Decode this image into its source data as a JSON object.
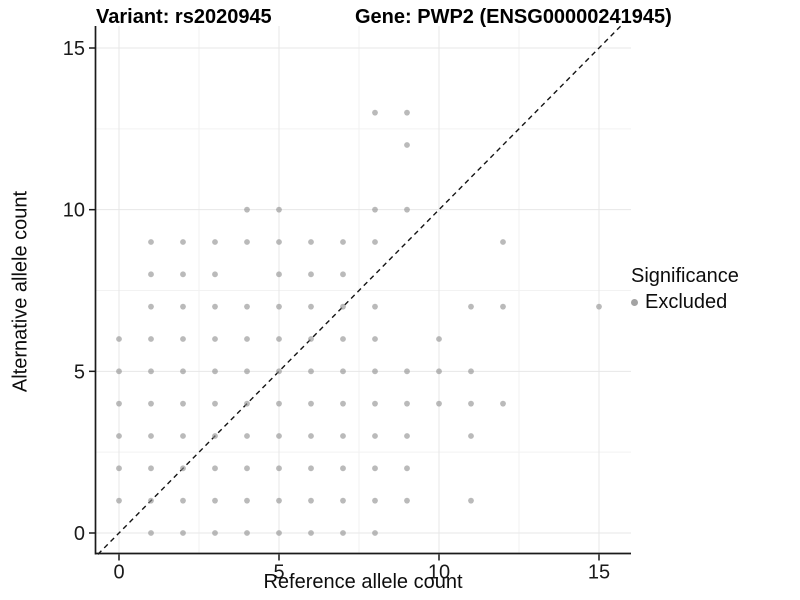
{
  "figure": {
    "title_variant": "Variant: rs2020945",
    "title_gene": "Gene: PWP2 (ENSG00000241945)"
  },
  "legend": {
    "title": "Significance",
    "items": [
      {
        "label": "Excluded",
        "color": "#a3a3a3"
      }
    ]
  },
  "chart_data": {
    "type": "scatter",
    "title": "Variant: rs2020945   Gene: PWP2 (ENSG00000241945)",
    "xlabel": "Reference allele count",
    "ylabel": "Alternative allele count",
    "xlim": [
      -0.75,
      15.7
    ],
    "ylim": [
      -0.65,
      15.7
    ],
    "x_ticks": [
      0,
      5,
      10,
      15
    ],
    "y_ticks": [
      0,
      5,
      10,
      15
    ],
    "x_minor_ticks": [
      2.5,
      7.5,
      12.5
    ],
    "y_minor_ticks": [
      2.5,
      7.5,
      12.5
    ],
    "grid": "on",
    "legend_position": "right",
    "identity_line": {
      "equation": "y = x",
      "style": "dashed",
      "color": "#141414"
    },
    "point_style": {
      "color": "#8f8f8f",
      "opacity": 0.62,
      "radius": 2.9
    },
    "series": [
      {
        "name": "Excluded",
        "points": [
          [
            1,
            0
          ],
          [
            2,
            0
          ],
          [
            3,
            0
          ],
          [
            4,
            0
          ],
          [
            5,
            0
          ],
          [
            6,
            0
          ],
          [
            7,
            0
          ],
          [
            8,
            0
          ],
          [
            0,
            1
          ],
          [
            1,
            1
          ],
          [
            2,
            1
          ],
          [
            3,
            1
          ],
          [
            4,
            1
          ],
          [
            5,
            1
          ],
          [
            6,
            1
          ],
          [
            7,
            1
          ],
          [
            8,
            1
          ],
          [
            9,
            1
          ],
          [
            11,
            1
          ],
          [
            0,
            2
          ],
          [
            1,
            2
          ],
          [
            2,
            2
          ],
          [
            3,
            2
          ],
          [
            4,
            2
          ],
          [
            5,
            2
          ],
          [
            6,
            2
          ],
          [
            7,
            2
          ],
          [
            8,
            2
          ],
          [
            9,
            2
          ],
          [
            0,
            3
          ],
          [
            1,
            3
          ],
          [
            2,
            3
          ],
          [
            3,
            3
          ],
          [
            4,
            3
          ],
          [
            5,
            3
          ],
          [
            6,
            3
          ],
          [
            7,
            3
          ],
          [
            8,
            3
          ],
          [
            9,
            3
          ],
          [
            11,
            3
          ],
          [
            0,
            4
          ],
          [
            1,
            4
          ],
          [
            2,
            4
          ],
          [
            3,
            4
          ],
          [
            4,
            4
          ],
          [
            5,
            4
          ],
          [
            6,
            4
          ],
          [
            7,
            4
          ],
          [
            8,
            4
          ],
          [
            9,
            4
          ],
          [
            10,
            4
          ],
          [
            11,
            4
          ],
          [
            12,
            4
          ],
          [
            0,
            5
          ],
          [
            1,
            5
          ],
          [
            2,
            5
          ],
          [
            3,
            5
          ],
          [
            4,
            5
          ],
          [
            5,
            5
          ],
          [
            6,
            5
          ],
          [
            7,
            5
          ],
          [
            8,
            5
          ],
          [
            9,
            5
          ],
          [
            10,
            5
          ],
          [
            11,
            5
          ],
          [
            0,
            6
          ],
          [
            1,
            6
          ],
          [
            2,
            6
          ],
          [
            3,
            6
          ],
          [
            4,
            6
          ],
          [
            5,
            6
          ],
          [
            6,
            6
          ],
          [
            7,
            6
          ],
          [
            8,
            6
          ],
          [
            10,
            6
          ],
          [
            1,
            7
          ],
          [
            2,
            7
          ],
          [
            3,
            7
          ],
          [
            4,
            7
          ],
          [
            5,
            7
          ],
          [
            6,
            7
          ],
          [
            7,
            7
          ],
          [
            8,
            7
          ],
          [
            11,
            7
          ],
          [
            12,
            7
          ],
          [
            15,
            7
          ],
          [
            1,
            8
          ],
          [
            2,
            8
          ],
          [
            3,
            8
          ],
          [
            5,
            8
          ],
          [
            6,
            8
          ],
          [
            7,
            8
          ],
          [
            1,
            9
          ],
          [
            2,
            9
          ],
          [
            3,
            9
          ],
          [
            4,
            9
          ],
          [
            5,
            9
          ],
          [
            6,
            9
          ],
          [
            7,
            9
          ],
          [
            8,
            9
          ],
          [
            12,
            9
          ],
          [
            4,
            10
          ],
          [
            5,
            10
          ],
          [
            8,
            10
          ],
          [
            9,
            10
          ],
          [
            9,
            12
          ],
          [
            8,
            13
          ],
          [
            9,
            13
          ]
        ]
      }
    ]
  },
  "layout_colors": {
    "major_grid": "#e7e7e7",
    "minor_grid": "#f2f2f2",
    "axis_line": "#1a1a1a",
    "tick_label": "#1a1a1a"
  }
}
